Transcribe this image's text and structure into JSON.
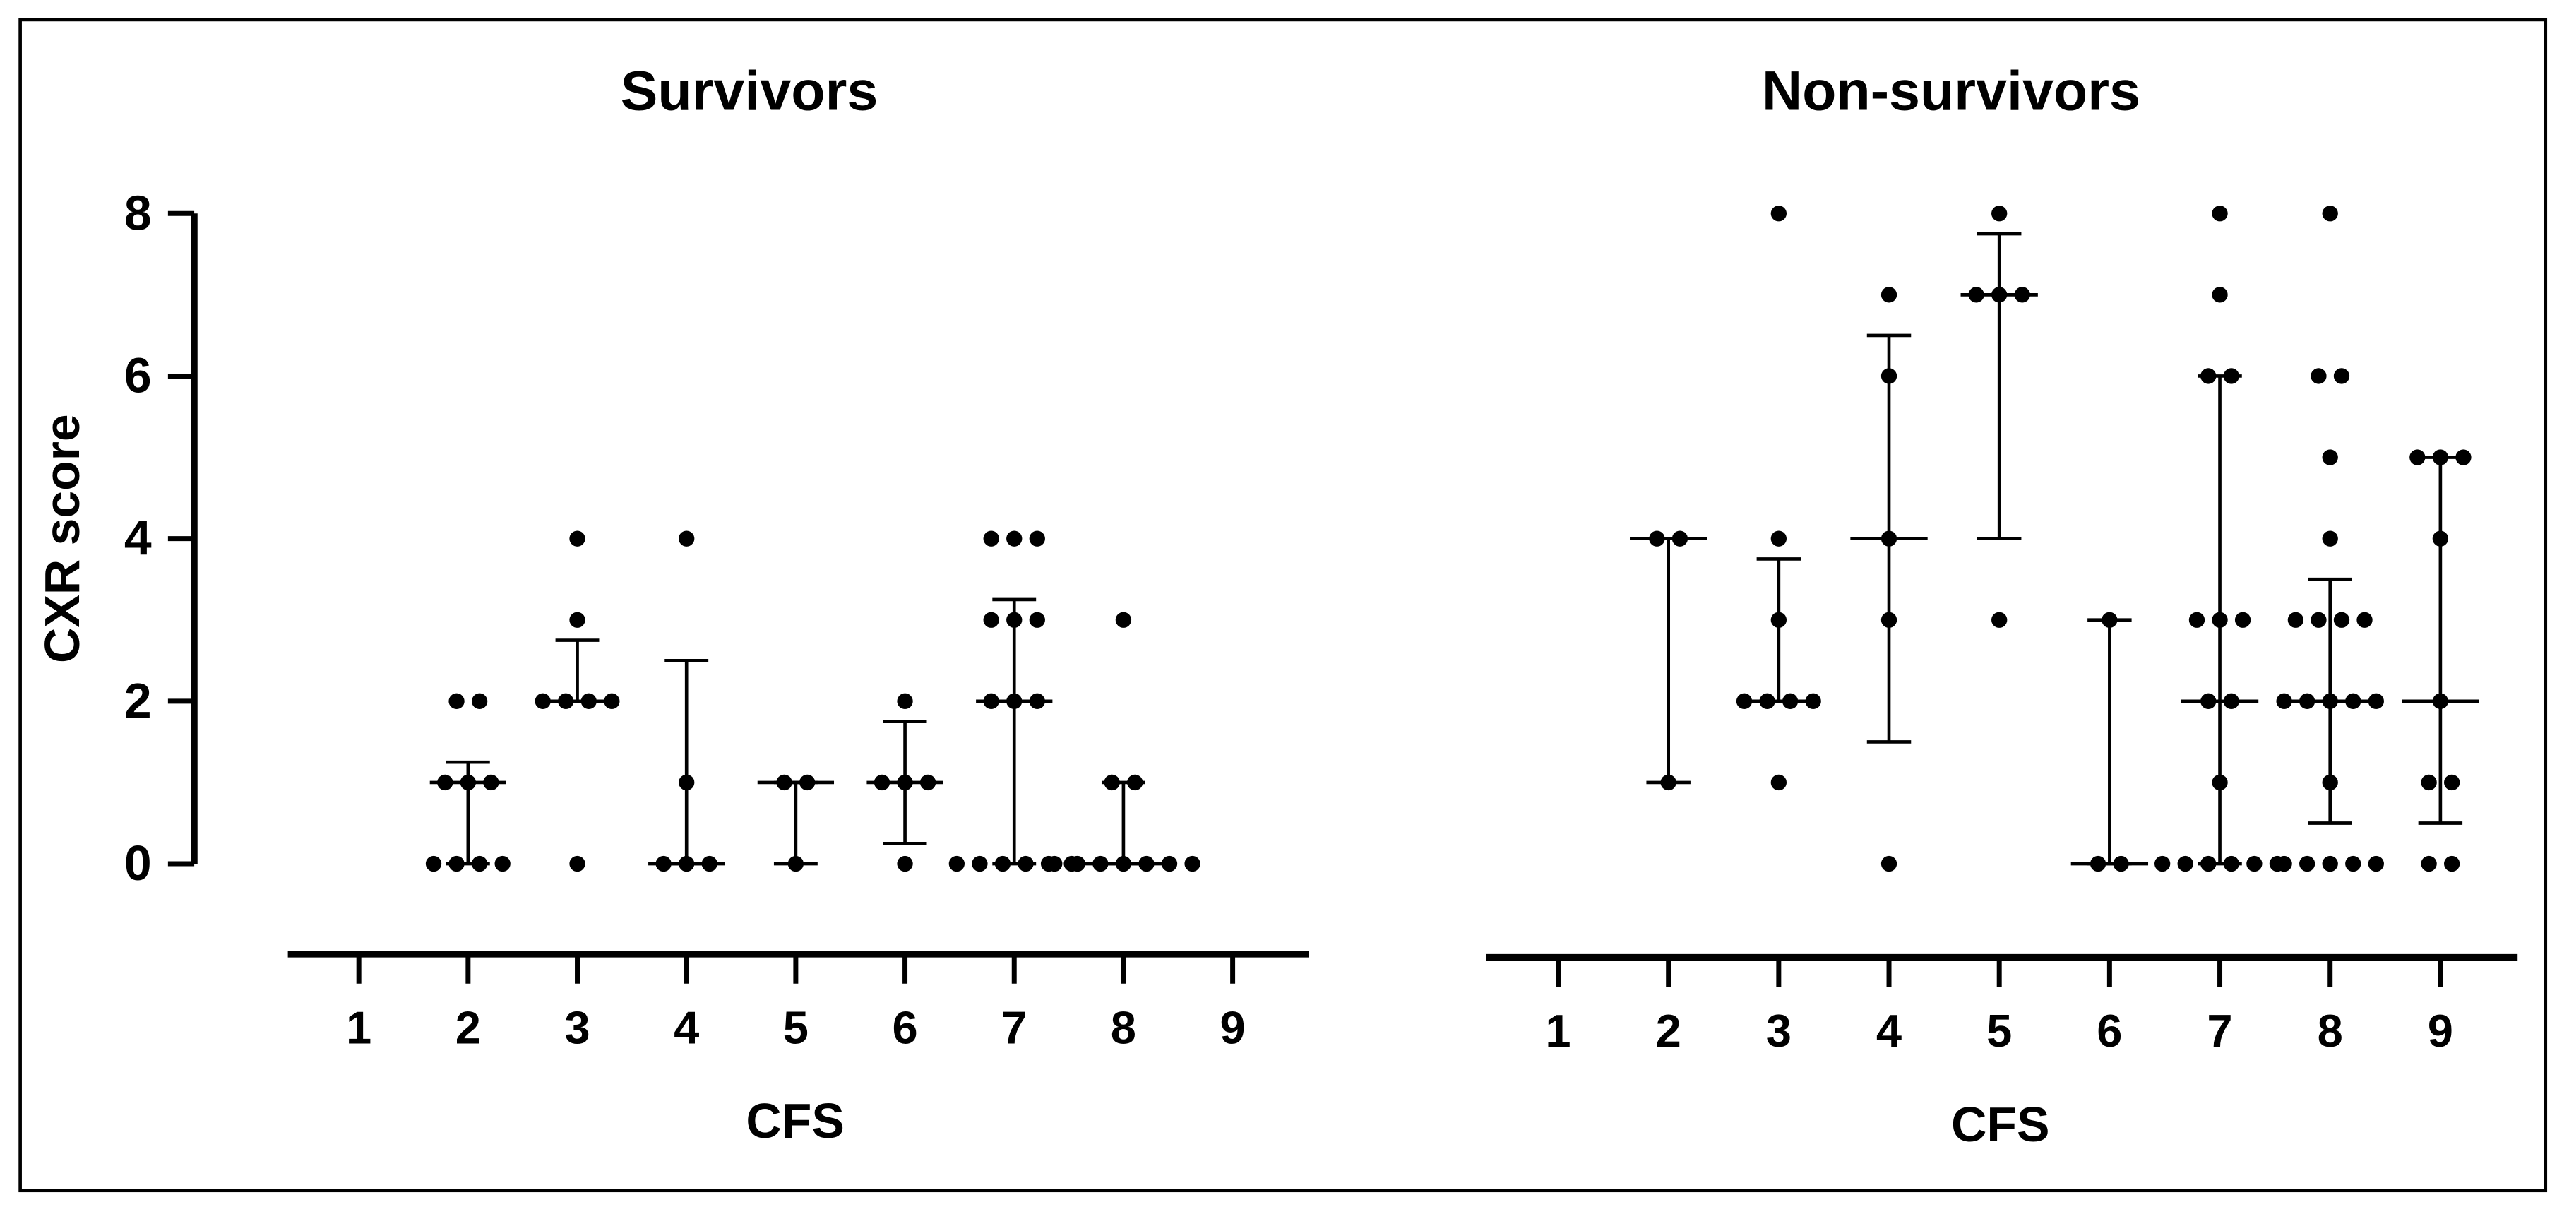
{
  "chart_data": [
    {
      "type": "dotplot",
      "title": "Survivors",
      "xlabel": "CFS",
      "ylabel": "CXR score",
      "color": "#000000",
      "xlim": [
        0.35,
        9.7
      ],
      "xticks": [
        1,
        2,
        3,
        4,
        5,
        6,
        7,
        8,
        9
      ],
      "ylim": [
        0,
        8
      ],
      "yticks": [
        0,
        2,
        4,
        6,
        8
      ],
      "groups": [
        {
          "x": 2,
          "values": [
            2,
            2,
            1,
            1,
            1,
            0,
            0,
            0,
            0
          ],
          "median": 1,
          "q1": 0,
          "q3": 1.25
        },
        {
          "x": 3,
          "values": [
            4,
            3,
            2,
            2,
            2,
            2,
            0
          ],
          "median": 2,
          "q1": 2,
          "q3": 2.75
        },
        {
          "x": 4,
          "values": [
            4,
            1,
            0,
            0,
            0
          ],
          "median": 0,
          "q1": 0,
          "q3": 2.5
        },
        {
          "x": 5,
          "values": [
            1,
            1,
            0
          ],
          "median": 1,
          "q1": 0,
          "q3": 1
        },
        {
          "x": 6,
          "values": [
            2,
            1,
            1,
            1,
            0
          ],
          "median": 1,
          "q1": 0.25,
          "q3": 1.75
        },
        {
          "x": 7,
          "values": [
            4,
            4,
            4,
            3,
            3,
            3,
            2,
            2,
            2,
            0,
            0,
            0,
            0,
            0,
            0
          ],
          "median": 2,
          "q1": 0,
          "q3": 3.25
        },
        {
          "x": 8,
          "values": [
            3,
            1,
            1,
            0,
            0,
            0,
            0,
            0,
            0,
            0
          ],
          "median": 0,
          "q1": 0,
          "q3": 1
        }
      ]
    },
    {
      "type": "dotplot",
      "title": "Non-survivors",
      "xlabel": "CFS",
      "color": "#000000",
      "xlim": [
        0.35,
        9.7
      ],
      "xticks": [
        1,
        2,
        3,
        4,
        5,
        6,
        7,
        8,
        9
      ],
      "ylim": [
        0,
        8
      ],
      "groups": [
        {
          "x": 2,
          "values": [
            4,
            4,
            1
          ],
          "median": 4,
          "q1": 1,
          "q3": 4
        },
        {
          "x": 3,
          "values": [
            8,
            4,
            3,
            2,
            2,
            2,
            2,
            1
          ],
          "median": 2,
          "q1": 2,
          "q3": 3.75
        },
        {
          "x": 4,
          "values": [
            7,
            6,
            4,
            3,
            0
          ],
          "median": 4,
          "q1": 1.5,
          "q3": 6.5
        },
        {
          "x": 5,
          "values": [
            8,
            7,
            7,
            7,
            3
          ],
          "median": 7,
          "q1": 4,
          "q3": 7.75
        },
        {
          "x": 6,
          "values": [
            3,
            0,
            0
          ],
          "median": 0,
          "q1": 0,
          "q3": 3
        },
        {
          "x": 7,
          "values": [
            8,
            7,
            6,
            6,
            3,
            3,
            3,
            2,
            2,
            1,
            0,
            0,
            0,
            0,
            0,
            0
          ],
          "median": 2,
          "q1": 0,
          "q3": 6
        },
        {
          "x": 8,
          "values": [
            8,
            6,
            6,
            5,
            4,
            3,
            3,
            3,
            3,
            2,
            2,
            2,
            2,
            2,
            1,
            0,
            0,
            0,
            0,
            0
          ],
          "median": 2,
          "q1": 0.5,
          "q3": 3.5
        },
        {
          "x": 9,
          "values": [
            5,
            5,
            5,
            4,
            2,
            1,
            1,
            0,
            0
          ],
          "median": 2,
          "q1": 0.5,
          "q3": 5
        }
      ]
    }
  ]
}
